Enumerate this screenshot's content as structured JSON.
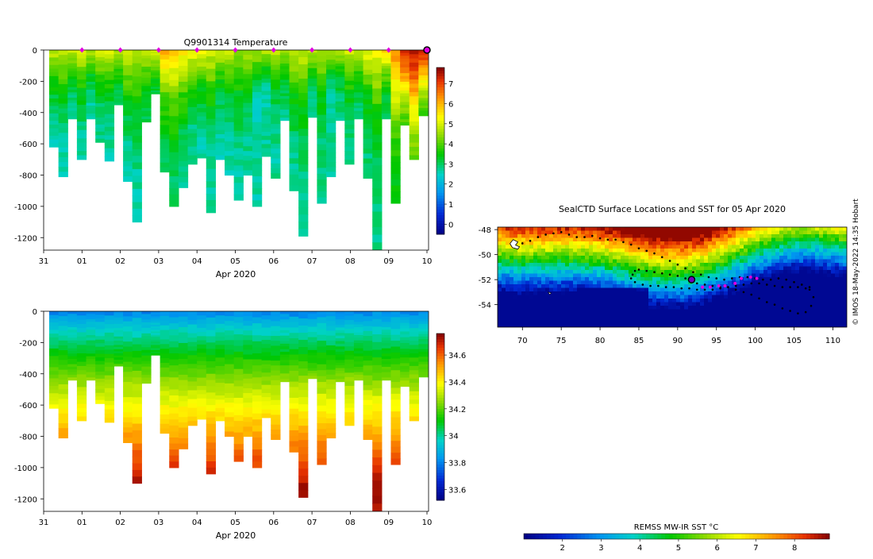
{
  "chart_data": [
    {
      "type": "heatmap",
      "title": "Q9901314  Temperature",
      "xlabel": "Apr 2020",
      "x_ticks": [
        "31",
        "01",
        "02",
        "03",
        "04",
        "05",
        "06",
        "07",
        "08",
        "09",
        "10"
      ],
      "y_ticks": [
        "0",
        "-200",
        "-400",
        "-600",
        "-800",
        "-1000",
        "-1200"
      ],
      "ylim": [
        -1280,
        0
      ],
      "colorbar_ticks": [
        "0",
        "1",
        "2",
        "3",
        "4",
        "5",
        "6",
        "7"
      ],
      "colorbar_range": [
        -0.5,
        7.8
      ],
      "profile_depths": [
        -620,
        -810,
        -440,
        -700,
        -440,
        -590,
        -710,
        -350,
        -840,
        -1100,
        -460,
        -280,
        -780,
        -1000,
        -880,
        -730,
        -690,
        -1040,
        -700,
        -800,
        -960,
        -800,
        -1000,
        -680,
        -820,
        -450,
        -900,
        -1190,
        -430,
        -980,
        -810,
        -450,
        -730,
        -440,
        -820,
        -1280,
        -440,
        -980,
        -480,
        -700,
        -420
      ],
      "profiles_temp": [
        [
          4.9,
          3.5,
          2.8,
          2.6
        ],
        [
          4.8,
          3.4,
          2.8,
          2.5
        ],
        [
          4.9,
          3.8,
          3.0,
          2.8
        ],
        [
          5.0,
          3.6,
          2.9,
          2.6
        ],
        [
          4.8,
          3.5,
          2.8,
          2.6
        ],
        [
          4.9,
          3.7,
          2.9,
          2.7
        ],
        [
          5.0,
          3.5,
          2.8,
          2.6
        ],
        [
          4.7,
          3.9,
          3.2,
          3.0
        ],
        [
          5.0,
          3.6,
          2.9,
          2.6
        ],
        [
          4.8,
          3.4,
          2.8,
          2.5
        ],
        [
          4.9,
          3.9,
          3.2,
          3.0
        ],
        [
          5.0,
          4.3,
          3.5,
          3.2
        ],
        [
          6.1,
          4.2,
          3.3,
          3.0
        ],
        [
          5.9,
          4.0,
          3.2,
          2.9
        ],
        [
          5.6,
          3.8,
          3.0,
          2.8
        ],
        [
          5.3,
          3.6,
          2.9,
          2.7
        ],
        [
          5.2,
          3.5,
          2.8,
          2.6
        ],
        [
          5.0,
          3.4,
          2.8,
          2.6
        ],
        [
          4.8,
          3.3,
          2.8,
          2.6
        ],
        [
          4.8,
          3.3,
          2.7,
          2.6
        ],
        [
          4.6,
          3.2,
          2.8,
          2.6
        ],
        [
          4.7,
          3.3,
          2.8,
          2.7
        ],
        [
          4.6,
          2.4,
          2.7,
          2.6
        ],
        [
          4.7,
          2.6,
          2.8,
          2.7
        ],
        [
          4.8,
          3.2,
          2.8,
          2.7
        ],
        [
          4.6,
          3.6,
          3.0,
          2.8
        ],
        [
          4.8,
          3.5,
          2.9,
          2.7
        ],
        [
          4.9,
          3.4,
          2.9,
          2.7
        ],
        [
          4.9,
          3.6,
          2.9,
          2.8
        ],
        [
          4.8,
          3.3,
          2.9,
          2.7
        ],
        [
          4.6,
          2.5,
          2.8,
          2.7
        ],
        [
          4.8,
          3.4,
          3.0,
          2.8
        ],
        [
          4.9,
          3.6,
          3.0,
          2.8
        ],
        [
          5.0,
          3.7,
          3.1,
          2.9
        ],
        [
          5.2,
          3.6,
          3.0,
          2.8
        ],
        [
          5.3,
          3.5,
          2.9,
          2.8
        ],
        [
          5.9,
          4.2,
          3.3,
          3.0
        ],
        [
          6.5,
          4.8,
          3.6,
          3.2
        ],
        [
          7.4,
          6.2,
          4.6,
          3.8
        ],
        [
          7.6,
          6.3,
          4.8,
          4.0
        ],
        [
          7.5,
          6.0,
          4.6,
          3.8
        ]
      ],
      "markers": [
        "01",
        "02",
        "03",
        "04",
        "05",
        "06",
        "07",
        "08",
        "09",
        "10"
      ]
    },
    {
      "type": "heatmap",
      "title": "",
      "xlabel": "Apr 2020",
      "x_ticks": [
        "31",
        "01",
        "02",
        "03",
        "04",
        "05",
        "06",
        "07",
        "08",
        "09",
        "10"
      ],
      "y_ticks": [
        "0",
        "-200",
        "-400",
        "-600",
        "-800",
        "-1000",
        "-1200"
      ],
      "ylim": [
        -1280,
        0
      ],
      "colorbar_ticks": [
        "33.6",
        "33.8",
        "34",
        "34.2",
        "34.4",
        "34.6"
      ],
      "colorbar_range": [
        33.52,
        34.76
      ],
      "profiles_salinity_surface": 33.78,
      "profiles_salinity_deep": 34.72
    },
    {
      "type": "scatter",
      "title": "SealCTD Surface Locations and SST for 05 Apr 2020",
      "xlabel": "",
      "x_ticks": [
        "70",
        "75",
        "80",
        "85",
        "90",
        "95",
        "100",
        "105",
        "110"
      ],
      "y_ticks": [
        "-48",
        "-50",
        "-52",
        "-54"
      ],
      "xlim": [
        66.8,
        111.8
      ],
      "ylim": [
        -55.8,
        -47.8
      ],
      "track_lon": [
        69,
        70,
        71,
        72,
        73,
        74,
        75,
        76,
        77,
        78,
        79,
        80,
        81,
        82,
        83,
        84,
        85,
        86,
        87,
        88,
        89,
        90,
        91,
        92,
        93,
        94,
        95,
        96,
        97,
        98,
        99,
        100,
        101,
        102,
        103,
        104,
        105,
        106,
        107,
        107.5,
        107.2,
        106.5,
        105.5,
        104.5,
        103.5,
        102.5,
        101.5,
        100.5,
        99.5,
        98.5,
        97.5,
        96.5,
        95.5,
        94.5,
        93.5,
        92.5,
        91.8,
        91,
        90,
        89,
        88,
        87,
        86,
        85,
        84.5,
        84.2,
        84,
        84.5,
        85.5,
        86.5,
        87.5,
        88.5,
        89.5,
        90.5,
        91.5,
        92.5,
        93.5,
        94.5,
        95.5,
        96.5,
        97.5,
        98.5,
        99.5,
        100.5,
        101.5,
        102.5,
        103.5,
        104.5,
        105.5,
        106.5,
        107
      ],
      "track_lat": [
        -49.4,
        -49.1,
        -48.9,
        -48.6,
        -48.4,
        -48.3,
        -48.2,
        -48.4,
        -48.6,
        -48.6,
        -48.5,
        -48.7,
        -48.8,
        -48.8,
        -49.0,
        -49.2,
        -49.5,
        -49.7,
        -49.9,
        -50.2,
        -50.5,
        -50.8,
        -51.1,
        -51.4,
        -51.6,
        -51.8,
        -51.9,
        -52.0,
        -51.9,
        -51.8,
        -51.8,
        -51.9,
        -52.0,
        -52.0,
        -51.9,
        -52.0,
        -52.2,
        -52.4,
        -52.6,
        -53.4,
        -54.1,
        -54.6,
        -54.7,
        -54.5,
        -54.3,
        -54.0,
        -53.8,
        -53.5,
        -53.2,
        -53.0,
        -52.8,
        -52.6,
        -52.6,
        -52.5,
        -52.4,
        -52.3,
        -52.1,
        -51.9,
        -51.7,
        -51.6,
        -51.5,
        -51.4,
        -51.3,
        -51.2,
        -51.3,
        -51.6,
        -51.9,
        -52.2,
        -52.4,
        -52.5,
        -52.5,
        -52.6,
        -52.6,
        -52.7,
        -52.7,
        -52.8,
        -52.8,
        -52.8,
        -52.7,
        -52.6,
        -52.5,
        -52.4,
        -52.3,
        -52.3,
        -52.4,
        -52.5,
        -52.6,
        -52.6,
        -52.6,
        -52.7,
        -52.8
      ],
      "magenta_lon": [
        93.2,
        94.2,
        95.3,
        96.1,
        97.4,
        98.2,
        99.4,
        100.2
      ],
      "magenta_lat": [
        -52.6,
        -52.6,
        -52.5,
        -52.5,
        -52.3,
        -51.9,
        -51.8,
        -51.9
      ],
      "current_lon": 91.8,
      "current_lat": -52.0,
      "colorbar_label": "REMSS MW-IR SST °C",
      "colorbar_ticks": [
        "2",
        "3",
        "4",
        "5",
        "6",
        "7",
        "8"
      ],
      "colorbar_range": [
        1.0,
        8.9
      ]
    }
  ],
  "credit": "© IMOS 18-May-2022 14:35 Hobart",
  "colors": {
    "marker": "#e000e0",
    "current": "#7000c0",
    "track": "#000000"
  }
}
